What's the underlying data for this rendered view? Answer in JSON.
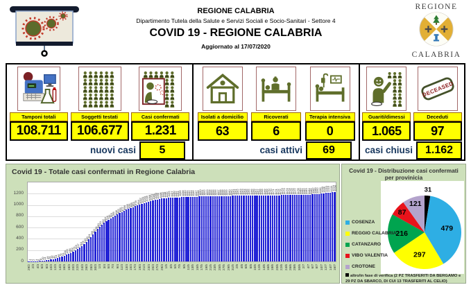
{
  "header": {
    "org": "REGIONE CALABRIA",
    "dept": "Dipartimento Tutela della Salute e Servizi Sociali e Socio-Sanitari - Settore 4",
    "title": "COVID 19 - REGIONE CALABRIA",
    "updated": "Aggiornato al 17/07/2020",
    "crest_top": "REGIONE",
    "crest_bottom": "CALABRIA",
    "logo_icon": "projector-screen-with-coronavirus-icon",
    "crest_icon": "regione-calabria-crest-icon"
  },
  "colors": {
    "card_yellow": "#ffff00",
    "label_navy": "#17375e",
    "panel_green": "#cde0ba",
    "bar_blue": "#2424d6",
    "icon_olive": "#5f6e2b",
    "icon_border_maroon": "#a26868"
  },
  "stats": {
    "groups": [
      {
        "cards": [
          {
            "label": "Tamponi totali",
            "value": "108.711",
            "icon": "lab-equipment-icon"
          },
          {
            "label": "Soggetti testati",
            "value": "106.677",
            "icon": "people-grid-icon"
          },
          {
            "label": "Casi confermati",
            "value": "1.231",
            "icon": "infected-person-icon"
          }
        ],
        "summary": {
          "label": "nuovi casi",
          "value": "5"
        }
      },
      {
        "cards": [
          {
            "label": "Isolati a domicilio",
            "value": "63",
            "icon": "house-icon"
          },
          {
            "label": "Ricoverati",
            "value": "6",
            "icon": "hospital-bed-icon"
          },
          {
            "label": "Terapia intensiva",
            "value": "0",
            "icon": "icu-bed-icon"
          }
        ],
        "summary": {
          "label": "casi attivi",
          "value": "69"
        }
      },
      {
        "cards": [
          {
            "label": "Guariti/dimessi",
            "value": "1.065",
            "icon": "recovered-person-icon"
          },
          {
            "label": "Deceduti",
            "value": "97",
            "icon": "deceased-stamp-icon",
            "stamp_text": "DECEASED"
          }
        ],
        "summary": {
          "label": "casi chiusi",
          "value": "1.162"
        }
      }
    ]
  },
  "chart_data": [
    {
      "type": "bar",
      "title": "Covid 19 - Totale casi confermati in Regione Calabria",
      "xlabel": "",
      "ylabel": "",
      "ylim": [
        0,
        1400
      ],
      "yticks": [
        0,
        200,
        400,
        600,
        800,
        1000,
        1200
      ],
      "grid": true,
      "bar_color": "#2424d6",
      "x": [
        "29/2",
        "1/3",
        "2/3",
        "3/3",
        "4/3",
        "5/3",
        "6/3",
        "7/3",
        "8/3",
        "9/3",
        "10/3",
        "11/3",
        "12/3",
        "13/3",
        "14/3",
        "15/3",
        "16/3",
        "17/3",
        "18/3",
        "19/3",
        "20/3",
        "21/3",
        "22/3",
        "23/3",
        "24/3",
        "25/3",
        "26/3",
        "27/3",
        "28/3",
        "29/3",
        "30/3",
        "31/3",
        "1/4",
        "2/4",
        "3/4",
        "4/4",
        "5/4",
        "6/4",
        "7/4",
        "8/4",
        "9/4",
        "10/4",
        "11/4",
        "12/4",
        "13/4",
        "14/4",
        "15/4",
        "16/4",
        "17/4",
        "18/4",
        "19/4",
        "20/4",
        "21/4",
        "22/4",
        "23/4",
        "24/4",
        "25/4",
        "26/4",
        "27/4",
        "28/4",
        "29/4",
        "30/4",
        "1/5",
        "2/5",
        "3/5",
        "4/5",
        "5/5",
        "6/5",
        "7/5",
        "8/5",
        "9/5",
        "10/5",
        "11/5",
        "12/5",
        "13/5",
        "14/5",
        "15/5",
        "16/5",
        "17/5",
        "18/5",
        "19/5",
        "20/5",
        "21/5",
        "22/5",
        "23/5",
        "24/5",
        "25/5",
        "26/5",
        "27/5",
        "28/5",
        "29/5",
        "30/5",
        "31/5",
        "1/6",
        "2/6",
        "3/6",
        "4/6",
        "5/6",
        "6/6",
        "7/6",
        "8/6",
        "9/6",
        "10/6",
        "11/6",
        "12/6",
        "13/6",
        "14/6",
        "15/6",
        "16/6",
        "17/6",
        "18/6",
        "19/6",
        "20/6",
        "21/6",
        "22/6",
        "23/6",
        "24/6",
        "25/6",
        "26/6",
        "27/6",
        "28/6",
        "29/6",
        "30/6",
        "1/7",
        "2/7",
        "3/7",
        "4/7",
        "5/7",
        "6/7",
        "7/7",
        "8/7",
        "9/7",
        "10/7",
        "11/7",
        "12/7",
        "13/7",
        "14/7",
        "15/7",
        "16/7"
      ],
      "values": [
        1,
        2,
        2,
        3,
        5,
        8,
        10,
        14,
        19,
        26,
        33,
        42,
        54,
        66,
        79,
        91,
        104,
        120,
        135,
        152,
        171,
        193,
        217,
        244,
        275,
        310,
        349,
        391,
        436,
        482,
        531,
        580,
        620,
        652,
        684,
        714,
        741,
        763,
        785,
        808,
        832,
        855,
        877,
        898,
        916,
        931,
        948,
        963,
        978,
        994,
        1007,
        1020,
        1033,
        1045,
        1058,
        1070,
        1081,
        1090,
        1099,
        1106,
        1112,
        1118,
        1122,
        1125,
        1127,
        1130,
        1132,
        1134,
        1136,
        1138,
        1140,
        1141,
        1142,
        1144,
        1146,
        1147,
        1148,
        1150,
        1151,
        1152,
        1153,
        1154,
        1155,
        1156,
        1156,
        1157,
        1158,
        1158,
        1159,
        1159,
        1160,
        1160,
        1161,
        1161,
        1162,
        1163,
        1163,
        1164,
        1165,
        1165,
        1166,
        1166,
        1167,
        1167,
        1168,
        1168,
        1169,
        1169,
        1170,
        1170,
        1171,
        1171,
        1172,
        1172,
        1173,
        1173,
        1174,
        1174,
        1175,
        1176,
        1177,
        1178,
        1180,
        1181,
        1182,
        1183,
        1184,
        1185,
        1187,
        1189,
        1192,
        1196,
        1200,
        1205,
        1210,
        1215,
        1220,
        1224,
        1226
      ]
    },
    {
      "type": "pie",
      "title": "Covid 19 - Distribuzione casi confermati per provinicia",
      "total": 1231,
      "slices": [
        {
          "name": "altro/in fase di verifica",
          "value": 31,
          "color": "#000000"
        },
        {
          "name": "COSENZA",
          "value": 479,
          "color": "#2eaee4"
        },
        {
          "name": "REGGIO CALABRIA",
          "value": 297,
          "color": "#ffff00"
        },
        {
          "name": "CATANZARO",
          "value": 216,
          "color": "#00a44f"
        },
        {
          "name": "VIBO VALENTIA",
          "value": 87,
          "color": "#e8131b"
        },
        {
          "name": "CROTONE",
          "value": 121,
          "color": "#b3a3cc"
        }
      ],
      "legend": [
        {
          "label": "COSENZA",
          "color": "#2eaee4"
        },
        {
          "label": "REGGIO CALABRIA",
          "color": "#ffff00"
        },
        {
          "label": "CATANZARO",
          "color": "#00a44f"
        },
        {
          "label": "VIBO VALENTIA",
          "color": "#e8131b"
        },
        {
          "label": "CROTONE",
          "color": "#b3a3cc"
        },
        {
          "label": "altro/in fase di verifica (2 PZ TRASFERITI DA BERGAMO e 29 PZ DA SBARCO, DI CUI 13 TRASFERITI AL CELIO)",
          "color": "#000000"
        }
      ],
      "legend_position": "left"
    }
  ]
}
